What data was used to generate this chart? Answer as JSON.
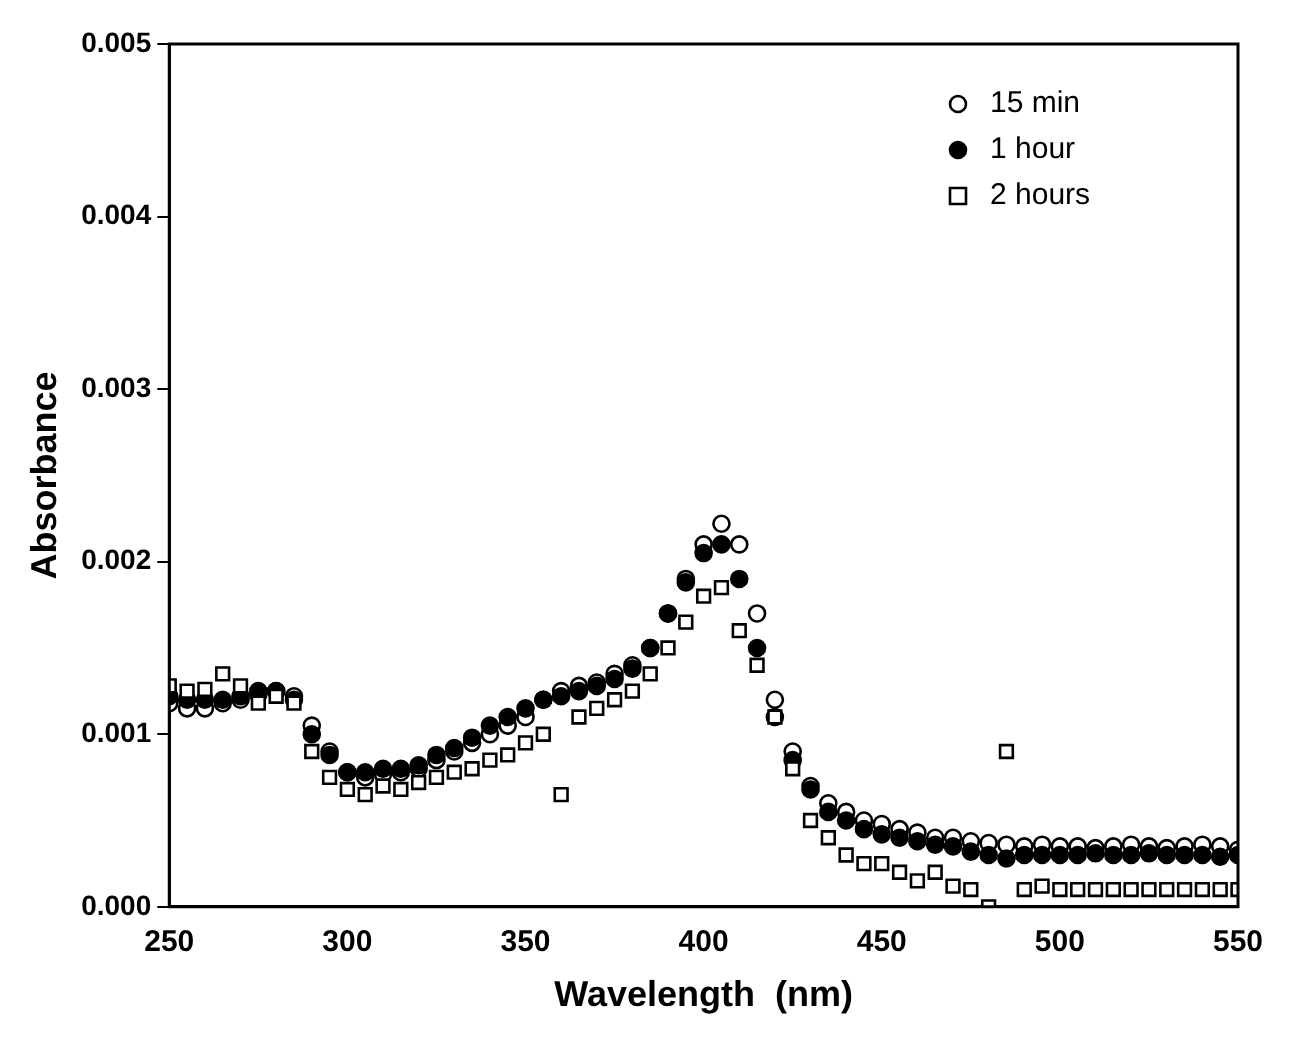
{
  "chart_data": {
    "type": "scatter",
    "xlabel": "Wavelength  (nm)",
    "ylabel": "Absorbance",
    "x": [
      250,
      255,
      260,
      265,
      270,
      275,
      280,
      285,
      290,
      295,
      300,
      305,
      310,
      315,
      320,
      325,
      330,
      335,
      340,
      345,
      350,
      355,
      360,
      365,
      370,
      375,
      380,
      385,
      390,
      395,
      400,
      405,
      410,
      415,
      420,
      425,
      430,
      435,
      440,
      445,
      450,
      455,
      460,
      465,
      470,
      475,
      480,
      485,
      490,
      495,
      500,
      505,
      510,
      515,
      520,
      525,
      530,
      535,
      540,
      545,
      550
    ],
    "series": [
      {
        "name": "15 min",
        "color": "#ffffff",
        "marker": "circle",
        "values": [
          0.00118,
          0.00115,
          0.00115,
          0.00118,
          0.0012,
          0.00123,
          0.00125,
          0.00122,
          0.00105,
          0.0009,
          0.00078,
          0.00075,
          0.00077,
          0.00078,
          0.0008,
          0.00085,
          0.0009,
          0.00095,
          0.001,
          0.00105,
          0.0011,
          0.0012,
          0.00125,
          0.00128,
          0.0013,
          0.00135,
          0.0014,
          0.0015,
          0.0017,
          0.0019,
          0.0021,
          0.00222,
          0.0021,
          0.0017,
          0.0012,
          0.0009,
          0.0007,
          0.0006,
          0.00055,
          0.0005,
          0.00048,
          0.00045,
          0.00043,
          0.0004,
          0.0004,
          0.00038,
          0.00037,
          0.00036,
          0.00035,
          0.00036,
          0.00035,
          0.00035,
          0.00034,
          0.00035,
          0.00036,
          0.00035,
          0.00034,
          0.00035,
          0.00036,
          0.00035,
          0.00033
        ]
      },
      {
        "name": "1 hour",
        "color": "#000000",
        "marker": "circle",
        "values": [
          0.00122,
          0.0012,
          0.0012,
          0.0012,
          0.00122,
          0.00125,
          0.00125,
          0.0012,
          0.001,
          0.00088,
          0.00078,
          0.00078,
          0.0008,
          0.0008,
          0.00082,
          0.00088,
          0.00092,
          0.00098,
          0.00105,
          0.0011,
          0.00115,
          0.0012,
          0.00122,
          0.00125,
          0.00128,
          0.00132,
          0.00138,
          0.0015,
          0.0017,
          0.00188,
          0.00205,
          0.0021,
          0.0019,
          0.0015,
          0.0011,
          0.00085,
          0.00068,
          0.00055,
          0.0005,
          0.00045,
          0.00042,
          0.0004,
          0.00038,
          0.00036,
          0.00035,
          0.00032,
          0.0003,
          0.00028,
          0.0003,
          0.0003,
          0.0003,
          0.0003,
          0.00031,
          0.0003,
          0.0003,
          0.00031,
          0.0003,
          0.0003,
          0.0003,
          0.00029,
          0.0003
        ]
      },
      {
        "name": "2 hours",
        "color": "#ffffff",
        "marker": "square",
        "values": [
          0.00128,
          0.00125,
          0.00126,
          0.00135,
          0.00128,
          0.00118,
          0.00122,
          0.00118,
          0.0009,
          0.00075,
          0.00068,
          0.00065,
          0.0007,
          0.00068,
          0.00072,
          0.00075,
          0.00078,
          0.0008,
          0.00085,
          0.00088,
          0.00095,
          0.001,
          0.00065,
          0.0011,
          0.00115,
          0.0012,
          0.00125,
          0.00135,
          0.0015,
          0.00165,
          0.0018,
          0.00185,
          0.0016,
          0.0014,
          0.0011,
          0.0008,
          0.0005,
          0.0004,
          0.0003,
          0.00025,
          0.00025,
          0.0002,
          0.00015,
          0.0002,
          0.00012,
          0.0001,
          0,
          0.0009,
          0.0001,
          0.00012,
          0.0001,
          0.0001,
          0.0001,
          0.0001,
          0.0001,
          0.0001,
          0.0001,
          0.0001,
          0.0001,
          0.0001,
          0.0001
        ]
      }
    ],
    "xlim": [
      250,
      550
    ],
    "xticks": [
      250,
      300,
      350,
      400,
      450,
      500,
      550
    ],
    "ylim": [
      0,
      0.005
    ],
    "yticks": [
      {
        "value": 0,
        "label": "0.000"
      },
      {
        "value": 0.001,
        "label": "0.001"
      },
      {
        "value": 0.002,
        "label": "0.002"
      },
      {
        "value": 0.003,
        "label": "0.003"
      },
      {
        "value": 0.004,
        "label": "0.004"
      },
      {
        "value": 0.005,
        "label": "0.005"
      }
    ],
    "grid": false,
    "legend": "top right"
  }
}
